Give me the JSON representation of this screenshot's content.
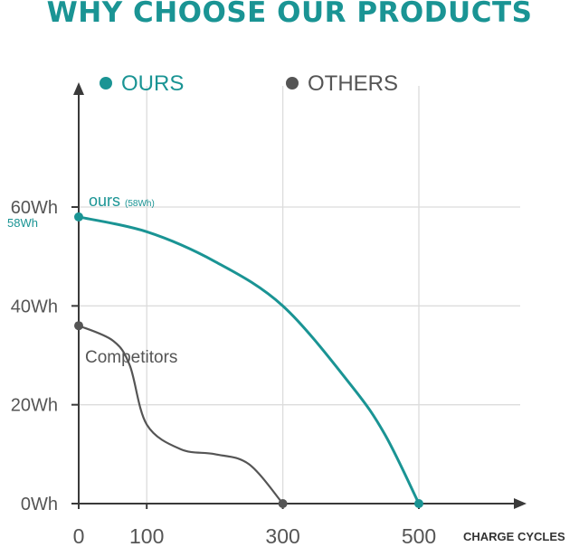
{
  "title": "WHY CHOOSE OUR PRODUCTS",
  "colors": {
    "accent": "#1a9494",
    "others": "#555555",
    "axis": "#3a3a3a",
    "grid": "#dcdcdc"
  },
  "legend": [
    {
      "label": "OURS",
      "color": "#1a9494"
    },
    {
      "label": "OTHERS",
      "color": "#555555"
    }
  ],
  "annotations": {
    "ours_label": "ours",
    "ours_sub": "(58Wh)",
    "ours_yvalue": "58Wh",
    "others_label": "Competitors",
    "ours_end_tick": "500"
  },
  "chart_data": {
    "type": "line",
    "title": "WHY CHOOSE OUR PRODUCTS",
    "xlabel": "CHARGE CYCLES",
    "ylabel": "",
    "xlim": [
      0,
      500
    ],
    "ylim": [
      0,
      60
    ],
    "x_ticks": [
      {
        "value": 0,
        "label": "0"
      },
      {
        "value": 100,
        "label": "100"
      },
      {
        "value": 300,
        "label": "300"
      },
      {
        "value": 500,
        "label": "500"
      }
    ],
    "y_ticks": [
      {
        "value": 0,
        "label": "0Wh"
      },
      {
        "value": 20,
        "label": "20Wh"
      },
      {
        "value": 40,
        "label": "40Wh"
      },
      {
        "value": 60,
        "label": "60Wh"
      }
    ],
    "grid": true,
    "legend_position": "top",
    "series": [
      {
        "name": "OURS",
        "color": "#1a9494",
        "x": [
          0,
          100,
          200,
          300,
          400,
          450,
          500
        ],
        "y": [
          58,
          55,
          49,
          40,
          24,
          14,
          0
        ]
      },
      {
        "name": "OTHERS",
        "color": "#555555",
        "x": [
          0,
          50,
          75,
          100,
          150,
          200,
          250,
          300
        ],
        "y": [
          36,
          33,
          28,
          16,
          11,
          10,
          8,
          0
        ]
      }
    ]
  }
}
